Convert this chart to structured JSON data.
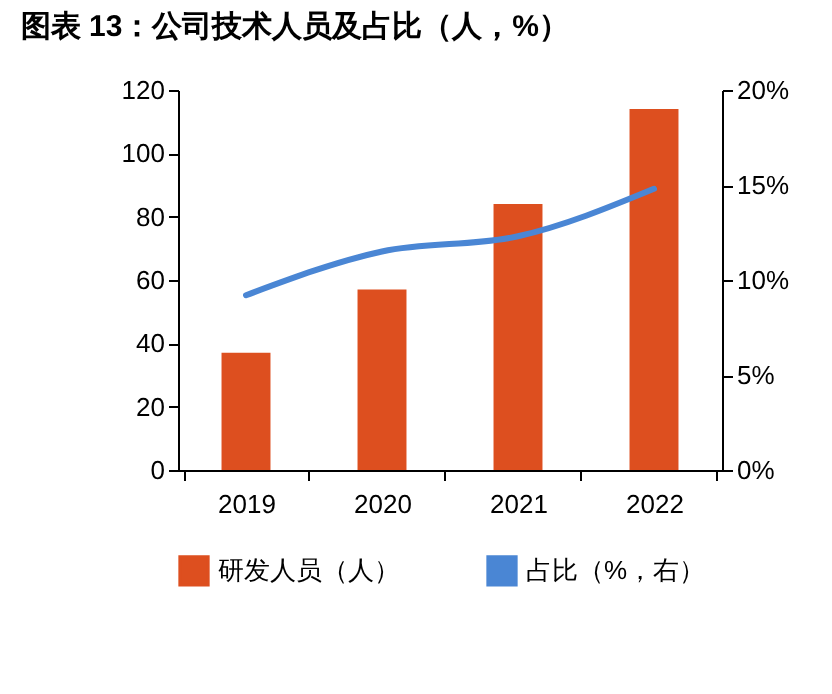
{
  "chart_data": {
    "type": "bar",
    "title": "图表 13：公司技术人员及占比（人，%）",
    "categories": [
      "2019",
      "2020",
      "2021",
      "2022"
    ],
    "series": [
      {
        "name": "研发人员（人）",
        "color": "#dd4f1f",
        "values": [
          37,
          57,
          84,
          114
        ]
      },
      {
        "name": "占比（%，右）",
        "type": "line",
        "axis": "y2",
        "color": "#4a86d4",
        "values": [
          9.2,
          11.5,
          12.3,
          14.8
        ]
      }
    ],
    "ylim": [
      0,
      120
    ],
    "yticks": [
      0,
      20,
      40,
      60,
      80,
      100,
      120
    ],
    "y2lim": [
      0,
      20
    ],
    "y2ticks": [
      {
        "value": 0,
        "label": "0%"
      },
      {
        "value": 5,
        "label": "5%"
      },
      {
        "value": 10,
        "label": "10%"
      },
      {
        "value": 15,
        "label": "15%"
      },
      {
        "value": 20,
        "label": "20%"
      }
    ],
    "legend": "bottom",
    "grid": false
  }
}
